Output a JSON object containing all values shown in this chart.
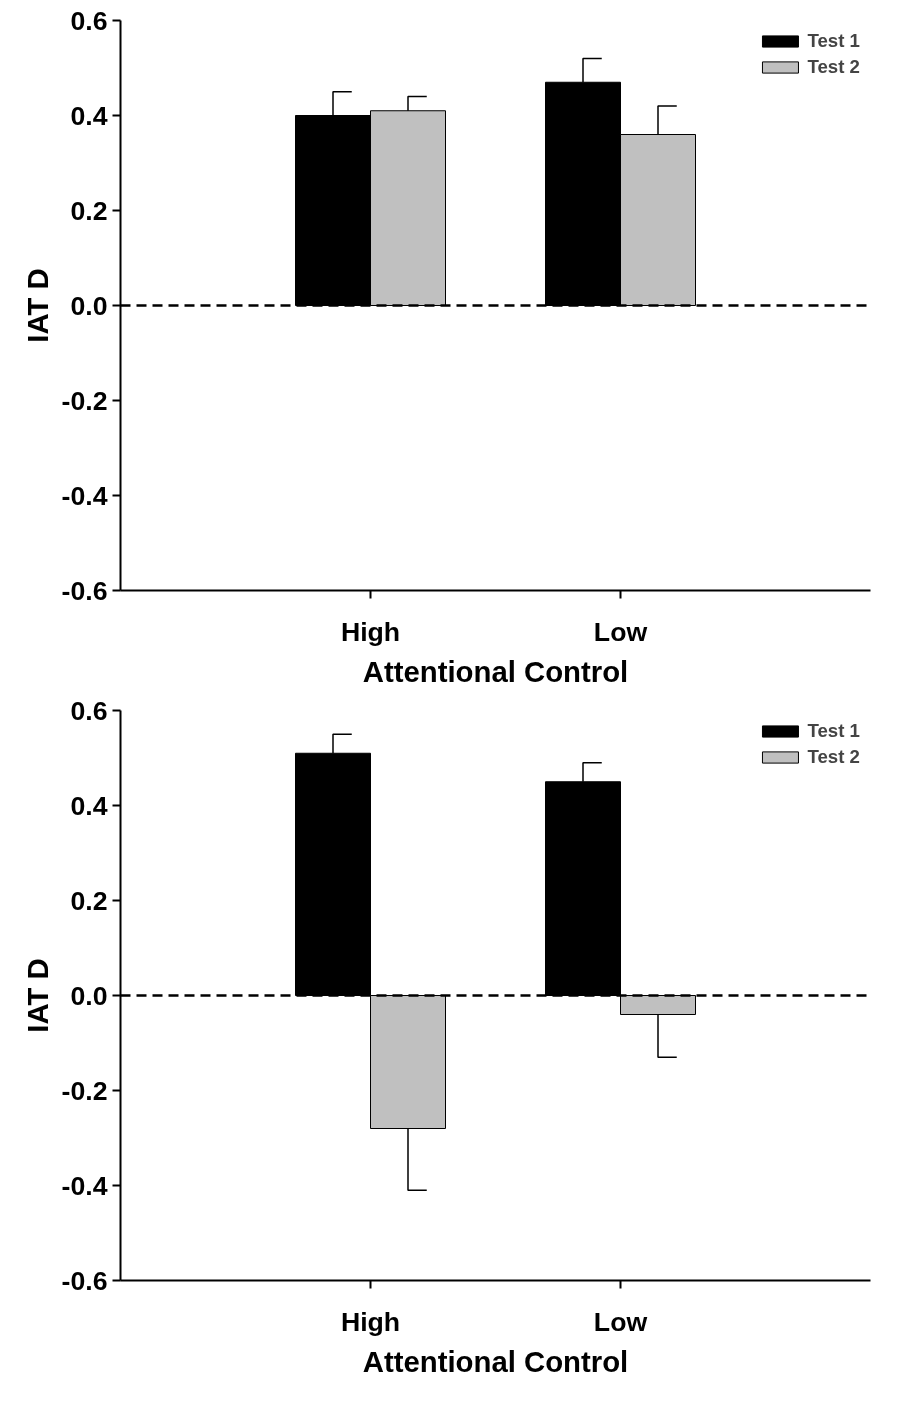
{
  "chart_data": [
    {
      "type": "bar",
      "xlabel": "Attentional Control",
      "ylabel": "IAT D",
      "categories": [
        "High",
        "Low"
      ],
      "series": [
        {
          "name": "Test 1",
          "color": "#000000",
          "values": [
            0.4,
            0.47
          ],
          "errors": [
            [
              0.4,
              0.45
            ],
            [
              0.47,
              0.52
            ]
          ]
        },
        {
          "name": "Test 2",
          "color": "#c0c0c0",
          "values": [
            0.41,
            0.36
          ],
          "errors": [
            [
              0.41,
              0.44
            ],
            [
              0.36,
              0.42
            ]
          ]
        }
      ],
      "ylim": [
        -0.6,
        0.6
      ],
      "yticks": [
        {
          "value": -0.6,
          "label": "-0.6"
        },
        {
          "value": -0.4,
          "label": "-0.4"
        },
        {
          "value": -0.2,
          "label": "-0.2"
        },
        {
          "value": 0,
          "label": "0.0"
        },
        {
          "value": 0.2,
          "label": "0.2"
        },
        {
          "value": 0.4,
          "label": "0.4"
        },
        {
          "value": 0.6,
          "label": "0.6"
        }
      ],
      "ref_lines": [
        {
          "axis": "y",
          "value": 0,
          "line_style": "dashed",
          "color": "#000000"
        }
      ],
      "legend": "top right",
      "grid": false
    },
    {
      "type": "bar",
      "xlabel": "Attentional Control",
      "ylabel": "IAT D",
      "categories": [
        "High",
        "Low"
      ],
      "series": [
        {
          "name": "Test 1",
          "color": "#000000",
          "values": [
            0.51,
            0.45
          ],
          "errors": [
            [
              0.51,
              0.55
            ],
            [
              0.45,
              0.49
            ]
          ]
        },
        {
          "name": "Test 2",
          "color": "#c0c0c0",
          "values": [
            -0.28,
            -0.04
          ],
          "errors": [
            [
              -0.41,
              -0.28
            ],
            [
              -0.13,
              -0.04
            ]
          ]
        }
      ],
      "ylim": [
        -0.6,
        0.6
      ],
      "yticks": [
        {
          "value": -0.6,
          "label": "-0.6"
        },
        {
          "value": -0.4,
          "label": "-0.4"
        },
        {
          "value": -0.2,
          "label": "-0.2"
        },
        {
          "value": 0,
          "label": "0.0"
        },
        {
          "value": 0.2,
          "label": "0.2"
        },
        {
          "value": 0.4,
          "label": "0.4"
        },
        {
          "value": 0.6,
          "label": "0.6"
        }
      ],
      "ref_lines": [
        {
          "axis": "y",
          "value": 0,
          "line_style": "dashed",
          "color": "#000000"
        }
      ],
      "legend": "top right",
      "grid": false
    }
  ]
}
